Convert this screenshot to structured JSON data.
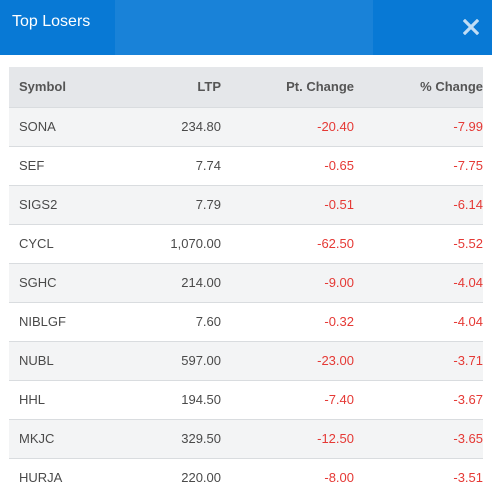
{
  "modal": {
    "title": "Top Losers",
    "close_icon": "close-icon"
  },
  "colors": {
    "header_bg": "#0879d5",
    "negative": "#e53935",
    "table_header_bg": "#e5e7ea",
    "row_alt_bg": "#f3f4f5"
  },
  "table": {
    "headers": {
      "symbol": "Symbol",
      "ltp": "LTP",
      "pt_change": "Pt. Change",
      "pct_change": "% Change"
    },
    "rows": [
      {
        "symbol": "SONA",
        "ltp": "234.80",
        "pt_change": "-20.40",
        "pct_change": "-7.99"
      },
      {
        "symbol": "SEF",
        "ltp": "7.74",
        "pt_change": "-0.65",
        "pct_change": "-7.75"
      },
      {
        "symbol": "SIGS2",
        "ltp": "7.79",
        "pt_change": "-0.51",
        "pct_change": "-6.14"
      },
      {
        "symbol": "CYCL",
        "ltp": "1,070.00",
        "pt_change": "-62.50",
        "pct_change": "-5.52"
      },
      {
        "symbol": "SGHC",
        "ltp": "214.00",
        "pt_change": "-9.00",
        "pct_change": "-4.04"
      },
      {
        "symbol": "NIBLGF",
        "ltp": "7.60",
        "pt_change": "-0.32",
        "pct_change": "-4.04"
      },
      {
        "symbol": "NUBL",
        "ltp": "597.00",
        "pt_change": "-23.00",
        "pct_change": "-3.71"
      },
      {
        "symbol": "HHL",
        "ltp": "194.50",
        "pt_change": "-7.40",
        "pct_change": "-3.67"
      },
      {
        "symbol": "MKJC",
        "ltp": "329.50",
        "pt_change": "-12.50",
        "pct_change": "-3.65"
      },
      {
        "symbol": "HURJA",
        "ltp": "220.00",
        "pt_change": "-8.00",
        "pct_change": "-3.51"
      }
    ]
  }
}
